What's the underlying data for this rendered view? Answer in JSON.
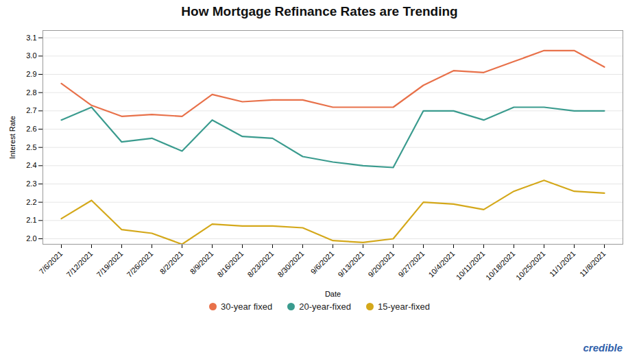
{
  "chart_data": {
    "type": "line",
    "title": "How Mortgage Refinance Rates are Trending",
    "xlabel": "Date",
    "ylabel": "Interest Rate",
    "categories": [
      "7/6/2021",
      "7/12/2021",
      "7/19/2021",
      "7/26/2021",
      "8/2/2021",
      "8/9/2021",
      "8/16/2021",
      "8/23/2021",
      "8/30/2021",
      "9/6/2021",
      "9/13/2021",
      "9/20/2021",
      "9/27/2021",
      "10/4/2021",
      "10/11/2021",
      "10/18/2021",
      "10/25/2021",
      "11/1/2021",
      "11/8/2021"
    ],
    "series": [
      {
        "name": "30-year fixed",
        "color": "#E8714A",
        "values": [
          2.85,
          2.73,
          2.67,
          2.68,
          2.67,
          2.79,
          2.75,
          2.76,
          2.76,
          2.72,
          2.72,
          2.72,
          2.84,
          2.92,
          2.91,
          2.97,
          3.03,
          3.03,
          2.94
        ]
      },
      {
        "name": "20-year-fixed",
        "color": "#3A9B8E",
        "values": [
          2.65,
          2.72,
          2.53,
          2.55,
          2.48,
          2.65,
          2.56,
          2.55,
          2.45,
          2.42,
          2.4,
          2.39,
          2.7,
          2.7,
          2.65,
          2.72,
          2.72,
          2.7,
          2.7
        ]
      },
      {
        "name": "15-year-fixed",
        "color": "#D4A81A",
        "values": [
          2.11,
          2.21,
          2.05,
          2.03,
          1.97,
          2.08,
          2.07,
          2.07,
          2.06,
          1.99,
          1.98,
          2.0,
          2.2,
          2.19,
          2.16,
          2.26,
          2.32,
          2.26,
          2.25
        ]
      }
    ],
    "ylim": [
      1.97,
      3.14
    ],
    "yticks": [
      {
        "value": 2.0,
        "label": "2.0"
      },
      2.1,
      2.2,
      2.3,
      2.4,
      2.5,
      2.6,
      2.7,
      2.8,
      2.9,
      {
        "value": 3.0,
        "label": "3.0"
      },
      3.1
    ],
    "grid": true,
    "legend": "bottom",
    "annotations": [
      {
        "text": "credible",
        "color": "#2E5EAA"
      }
    ]
  }
}
